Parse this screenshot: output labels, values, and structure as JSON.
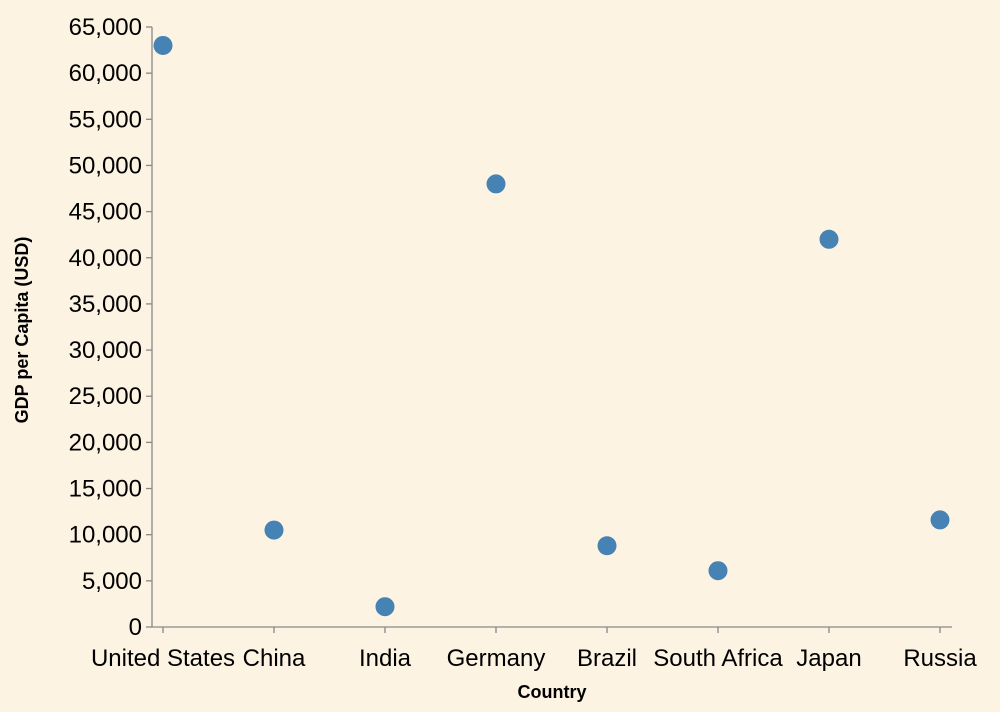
{
  "chart_data": {
    "type": "scatter",
    "title": "",
    "xlabel": "Country",
    "ylabel": "GDP per Capita (USD)",
    "categories": [
      "United States",
      "China",
      "India",
      "Germany",
      "Brazil",
      "South Africa",
      "Japan",
      "Russia"
    ],
    "values": [
      63000,
      10500,
      2200,
      48000,
      8800,
      6100,
      42000,
      11600
    ],
    "ylim": [
      0,
      65000
    ],
    "yticks": [
      0,
      5000,
      10000,
      15000,
      20000,
      25000,
      30000,
      35000,
      40000,
      45000,
      50000,
      55000,
      60000,
      65000
    ],
    "ytick_labels": [
      "0",
      "5,000",
      "10,000",
      "15,000",
      "20,000",
      "25,000",
      "30,000",
      "35,000",
      "40,000",
      "45,000",
      "50,000",
      "55,000",
      "60,000",
      "65,000"
    ],
    "grid": false,
    "colors": {
      "point": "#4682b4",
      "background": "#fdf3e3",
      "axis": "#888888"
    }
  }
}
